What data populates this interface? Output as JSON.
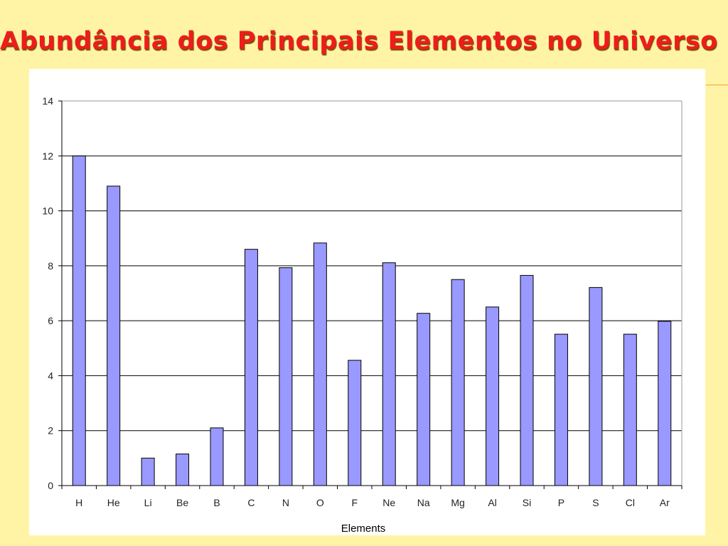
{
  "slide": {
    "title": "Abundância dos Principais Elementos no Universo",
    "title_color": "#ee1c1c",
    "background_color": "#fff4a6",
    "accent_color": "#f2a23a"
  },
  "chart_data": {
    "type": "bar",
    "title": "",
    "xlabel": "Elements",
    "ylabel": "",
    "categories": [
      "H",
      "He",
      "Li",
      "Be",
      "B",
      "C",
      "N",
      "O",
      "F",
      "Ne",
      "Na",
      "Mg",
      "Al",
      "Si",
      "P",
      "S",
      "Cl",
      "Ar"
    ],
    "values": [
      12.0,
      10.9,
      1.0,
      1.15,
      2.1,
      8.6,
      7.93,
      8.83,
      4.56,
      8.11,
      6.27,
      7.5,
      6.5,
      7.65,
      5.51,
      7.21,
      5.51,
      5.98
    ],
    "ylim": [
      0,
      14
    ],
    "yticks": [
      0,
      2,
      4,
      6,
      8,
      10,
      12,
      14
    ],
    "grid": true,
    "legend": "none",
    "bar_color": "#9999ff",
    "bar_edge_color": "#000000"
  }
}
